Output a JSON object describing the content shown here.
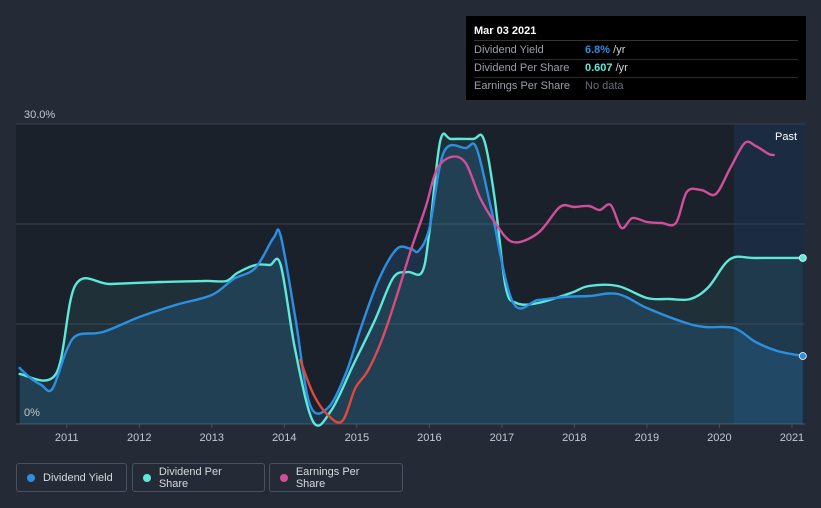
{
  "tooltip": {
    "date": "Mar 03 2021",
    "rows": [
      {
        "label": "Dividend Yield",
        "value": "6.8%",
        "unit": " /yr"
      },
      {
        "label": "Dividend Per Share",
        "value": "0.607",
        "unit": " /yr"
      },
      {
        "label": "Earnings Per Share",
        "value": "No data"
      }
    ]
  },
  "legend": {
    "items": [
      {
        "label": "Dividend Yield"
      },
      {
        "label": "Dividend Per Share"
      },
      {
        "label": "Earnings Per Share"
      }
    ]
  },
  "colors": {
    "background": "#252b36",
    "plot": "#1b212b",
    "dividend_yield": "#2c8fe0",
    "dividend_per_share": "#5de8d8",
    "earnings_per_share": "#d14e98",
    "past_band": "#1b3556"
  },
  "chart_data": {
    "type": "line",
    "ylim": [
      0,
      30
    ],
    "y_ticks": [
      "0%",
      "30.0%"
    ],
    "x_ticks": [
      "2011",
      "2012",
      "2013",
      "2014",
      "2015",
      "2016",
      "2017",
      "2018",
      "2019",
      "2020",
      "2021"
    ],
    "xlim": [
      2010.3,
      2021.18
    ],
    "past_label": "Past",
    "past_start": 2020.2,
    "series": [
      {
        "name": "Dividend Yield",
        "x": [
          2010.35,
          2010.5,
          2010.65,
          2010.8,
          2011.0,
          2011.15,
          2011.5,
          2012.0,
          2012.5,
          2013.0,
          2013.3,
          2013.6,
          2013.85,
          2013.95,
          2014.15,
          2014.35,
          2014.6,
          2014.85,
          2015.05,
          2015.3,
          2015.55,
          2015.75,
          2015.85,
          2016.0,
          2016.2,
          2016.5,
          2016.65,
          2016.85,
          2017.15,
          2017.5,
          2017.85,
          2018.2,
          2018.6,
          2019.0,
          2019.5,
          2019.8,
          2020.2,
          2020.5,
          2020.8,
          2021.15
        ],
        "y": [
          5.6,
          4.6,
          3.9,
          3.5,
          7.4,
          8.9,
          9.2,
          10.7,
          11.9,
          12.9,
          14.5,
          15.6,
          18.6,
          18.8,
          10.7,
          2.0,
          1.6,
          5.1,
          9.5,
          14.4,
          17.5,
          17.5,
          17.3,
          19.6,
          27.2,
          27.6,
          27.6,
          21.6,
          12.2,
          12.4,
          12.7,
          12.8,
          13.0,
          11.6,
          10.2,
          9.7,
          9.6,
          8.2,
          7.3,
          6.8
        ]
      },
      {
        "name": "Dividend Per Share",
        "x": [
          2010.35,
          2010.85,
          2011.12,
          2011.6,
          2012.3,
          2012.9,
          2013.2,
          2013.35,
          2013.6,
          2013.8,
          2013.95,
          2014.15,
          2014.4,
          2014.65,
          2014.95,
          2015.25,
          2015.5,
          2015.7,
          2015.9,
          2016.0,
          2016.15,
          2016.3,
          2016.6,
          2016.75,
          2016.9,
          2017.05,
          2017.2,
          2017.5,
          2017.95,
          2018.2,
          2018.6,
          2019.0,
          2019.3,
          2019.6,
          2019.85,
          2020.15,
          2020.5,
          2021.15
        ],
        "y": [
          5.0,
          5.0,
          13.9,
          14.0,
          14.2,
          14.3,
          14.3,
          15.1,
          15.9,
          15.9,
          15.9,
          7.4,
          0.2,
          1.4,
          5.9,
          10.4,
          14.6,
          15.2,
          15.2,
          19.2,
          28.3,
          28.5,
          28.5,
          28.5,
          22.6,
          13.8,
          12.1,
          12.1,
          13.1,
          13.8,
          13.8,
          12.6,
          12.5,
          12.5,
          13.7,
          16.5,
          16.6,
          16.6
        ]
      },
      {
        "name": "Earnings Per Share",
        "x": [
          2014.22,
          2014.4,
          2014.6,
          2014.8,
          2014.98,
          2015.15,
          2015.35,
          2015.55,
          2015.75,
          2015.95,
          2016.1,
          2016.3,
          2016.5,
          2016.7,
          2016.9,
          2017.15,
          2017.5,
          2017.8,
          2018.0,
          2018.2,
          2018.35,
          2018.5,
          2018.65,
          2018.8,
          2019.0,
          2019.2,
          2019.4,
          2019.55,
          2019.75,
          2019.95,
          2020.15,
          2020.35,
          2020.5,
          2020.68,
          2020.75
        ],
        "y": [
          6.4,
          3.0,
          0.9,
          0.3,
          3.6,
          5.3,
          8.5,
          12.8,
          17.5,
          21.7,
          25.4,
          26.7,
          26.1,
          22.6,
          20.2,
          18.2,
          19.1,
          21.7,
          21.7,
          21.8,
          21.4,
          21.9,
          19.6,
          20.6,
          20.2,
          20.1,
          20.1,
          23.2,
          23.4,
          23.0,
          25.6,
          28.1,
          27.8,
          27.0,
          26.9
        ]
      }
    ],
    "end_markers": [
      "Dividend Yield",
      "Dividend Per Share"
    ]
  }
}
